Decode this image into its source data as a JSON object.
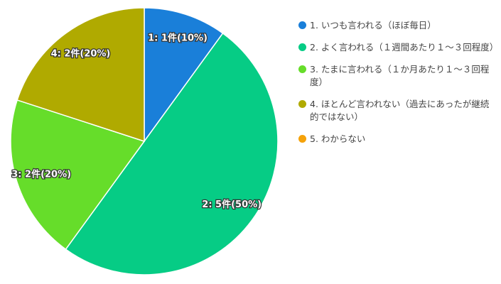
{
  "chart_data": {
    "type": "pie",
    "categories": [
      "1. いつも言われる（ほぼ毎日）",
      "2. よく言われる（１週間あたり１～３回程度）",
      "3. たまに言われる（１か月あたり１～３回程度）",
      "4. ほとんど言われない（過去にあったが継続的ではない）",
      "5. わからない"
    ],
    "values": [
      1,
      5,
      2,
      2,
      0
    ],
    "value_labels": [
      "1: 1件(10%)",
      "2: 5件(50%)",
      "3: 2件(20%)",
      "4: 2件(20%)",
      null
    ],
    "colors": [
      "#1a7fd9",
      "#06cc85",
      "#66dd2a",
      "#b0aa00",
      "#f5a20a"
    ]
  }
}
